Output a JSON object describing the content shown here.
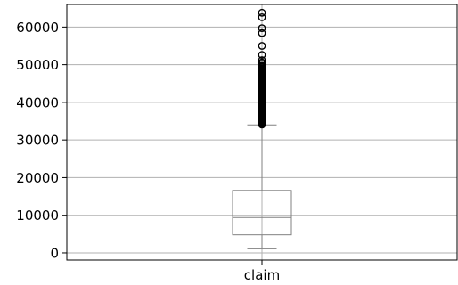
{
  "chart_data": {
    "type": "boxplot",
    "title": "",
    "xlabel": "",
    "ylabel": "",
    "categories": [
      "claim"
    ],
    "ylim": [
      -1900,
      66000
    ],
    "yticks": [
      0,
      10000,
      20000,
      30000,
      40000,
      50000,
      60000
    ],
    "ytick_labels": [
      "0",
      "10000",
      "20000",
      "30000",
      "40000",
      "50000",
      "60000"
    ],
    "grid": "horizontal",
    "box": {
      "whisker_low": 1100,
      "q1": 4800,
      "median": 9400,
      "q3": 16600,
      "whisker_high": 34000
    },
    "outliers": [
      34100,
      34300,
      34500,
      34700,
      34900,
      35100,
      35300,
      35500,
      35700,
      35900,
      36100,
      36300,
      36500,
      36700,
      36900,
      37100,
      37300,
      37500,
      37700,
      37900,
      38100,
      38300,
      38500,
      38700,
      38900,
      39100,
      39300,
      39500,
      39700,
      39900,
      40100,
      40300,
      40500,
      40700,
      40900,
      41100,
      41300,
      41500,
      41700,
      41900,
      42100,
      42300,
      42500,
      42700,
      42900,
      43100,
      43300,
      43500,
      43700,
      43900,
      44100,
      44300,
      44500,
      44700,
      44900,
      45100,
      45300,
      45500,
      45700,
      45900,
      46100,
      46300,
      46500,
      46700,
      46900,
      47100,
      47300,
      47500,
      47700,
      47900,
      48100,
      48300,
      48500,
      48700,
      48900,
      49100,
      49400,
      49700,
      50200,
      50600,
      51200,
      52600,
      55000,
      58400,
      59700,
      62600,
      63800
    ],
    "colors": {
      "box": "#808080",
      "median": "#808080",
      "grid": "#b0b0b0",
      "outlier": "#000000",
      "axis": "#000000"
    }
  }
}
